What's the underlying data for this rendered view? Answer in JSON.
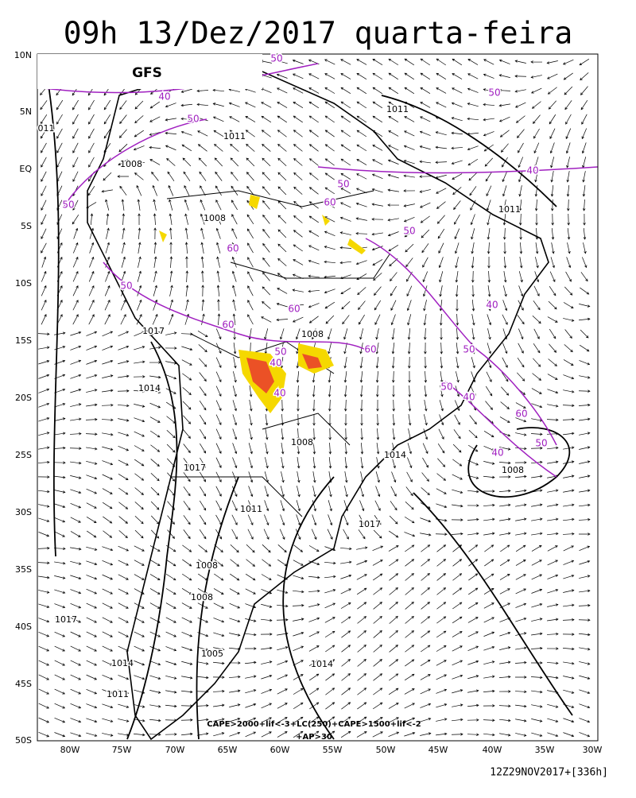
{
  "header": {
    "title": "09h 13/Dez/2017 quarta-feira",
    "model": "GFS"
  },
  "lat_labels": [
    "10N",
    "5N",
    "EQ",
    "5S",
    "10S",
    "15S",
    "20S",
    "25S",
    "30S",
    "35S",
    "40S",
    "45S",
    "50S"
  ],
  "lon_labels": [
    "80W",
    "75W",
    "70W",
    "65W",
    "60W",
    "55W",
    "50W",
    "45W",
    "40W",
    "35W",
    "30W"
  ],
  "isobar_labels": [
    "1011",
    "011",
    "1011",
    "1008",
    "1011",
    "1008",
    "1017",
    "1008",
    "1014",
    "1008",
    "1014",
    "1017",
    "1008",
    "1011",
    "1017",
    "1008",
    "1008",
    "1017",
    "1005",
    "1014",
    "1014",
    "1011"
  ],
  "humidity_labels": [
    "50",
    "40",
    "50",
    "50",
    "40",
    "50",
    "50",
    "60",
    "50",
    "60",
    "50",
    "60",
    "40",
    "60",
    "50",
    "40",
    "60",
    "50",
    "50",
    "40",
    "40",
    "60",
    "50",
    "40"
  ],
  "legend": [
    "CAPE>2000+lif<-3+LC(250)+CAPE>1500+lif<-2",
    "+AP>30"
  ],
  "footer": "12Z29NOV2017+[336h]"
}
